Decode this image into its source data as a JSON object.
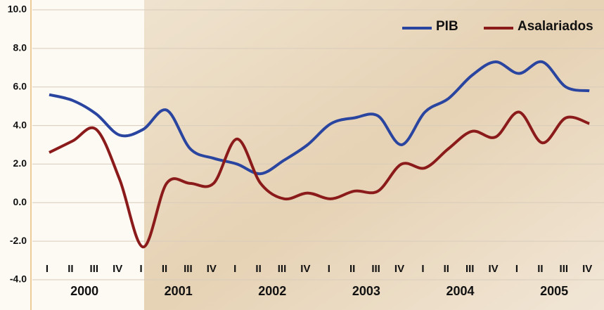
{
  "chart_data": {
    "type": "line",
    "categories": [
      "I",
      "II",
      "III",
      "IV",
      "I",
      "II",
      "III",
      "IV",
      "I",
      "II",
      "III",
      "IV",
      "I",
      "II",
      "III",
      "IV",
      "I",
      "II",
      "III",
      "IV",
      "I",
      "II",
      "III",
      "IV"
    ],
    "groups": [
      "2000",
      "2001",
      "2002",
      "2003",
      "2004",
      "2005"
    ],
    "series": [
      {
        "name": "PIB",
        "color": "#2a45a0",
        "values": [
          5.6,
          5.3,
          4.6,
          3.5,
          3.8,
          4.8,
          2.8,
          2.3,
          2.0,
          1.5,
          2.2,
          3.0,
          4.1,
          4.4,
          4.5,
          3.0,
          4.7,
          5.4,
          6.6,
          7.3,
          6.7,
          7.3,
          6.0,
          5.8
        ]
      },
      {
        "name": "Asalariados",
        "color": "#8b1a1a",
        "values": [
          2.6,
          3.2,
          3.8,
          1.2,
          -2.3,
          1.0,
          1.0,
          1.0,
          3.3,
          1.0,
          0.2,
          0.5,
          0.2,
          0.6,
          0.6,
          2.0,
          1.8,
          2.8,
          3.7,
          3.4,
          4.7,
          3.1,
          4.4,
          4.1
        ]
      }
    ],
    "ylim": [
      -4,
      10
    ],
    "yticks": [
      {
        "value": -4,
        "label": "-4.0"
      },
      {
        "value": -2,
        "label": "-2.0"
      },
      {
        "value": 0,
        "label": "0.0"
      },
      {
        "value": 2,
        "label": "2.0"
      },
      {
        "value": 4,
        "label": "4.0"
      },
      {
        "value": 6,
        "label": "6.0"
      },
      {
        "value": 8,
        "label": "8.0"
      },
      {
        "value": 10,
        "label": "10.0"
      }
    ],
    "grid": true,
    "legend": "top-right"
  }
}
